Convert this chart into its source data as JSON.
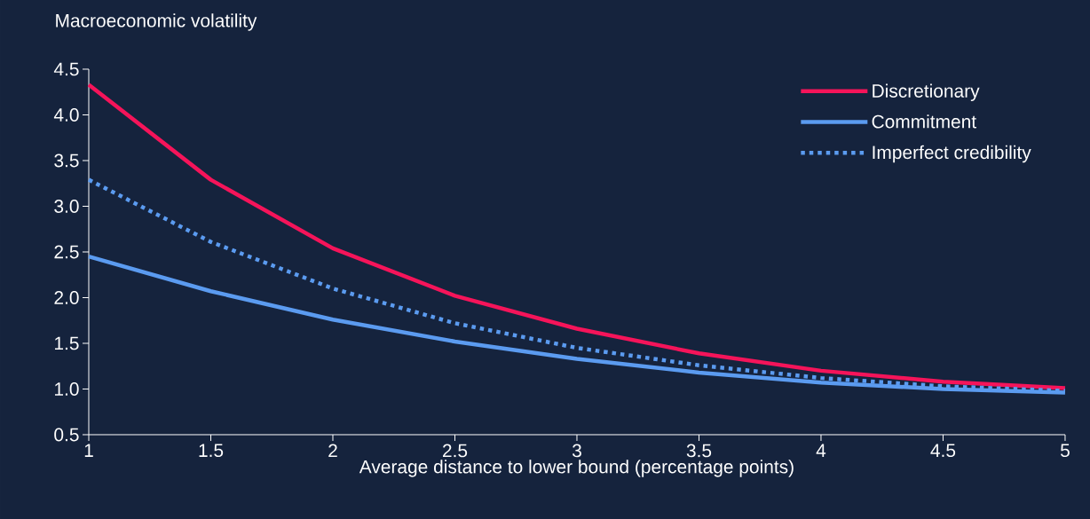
{
  "chart_data": {
    "type": "line",
    "ylabel": "Macroeconomic volatility",
    "xlabel": "Average distance to lower bound (percentage points)",
    "x": [
      1,
      1.5,
      2,
      2.5,
      3,
      3.5,
      4,
      4.5,
      5
    ],
    "series": [
      {
        "name": "Discretionary",
        "color": "#f5145a",
        "line_style": "solid",
        "values": [
          4.33,
          3.29,
          2.54,
          2.02,
          1.66,
          1.39,
          1.2,
          1.08,
          1.01
        ]
      },
      {
        "name": "Commitment",
        "color": "#5b9bf0",
        "line_style": "solid",
        "values": [
          2.45,
          2.07,
          1.76,
          1.52,
          1.33,
          1.18,
          1.07,
          1.0,
          0.96
        ]
      },
      {
        "name": "Imperfect credibility",
        "color": "#5b9bf0",
        "line_style": "dotted",
        "values": [
          3.29,
          2.61,
          2.1,
          1.72,
          1.45,
          1.26,
          1.12,
          1.03,
          0.98
        ]
      }
    ],
    "xlim": [
      1,
      5
    ],
    "xticks": [
      1,
      1.5,
      2,
      2.5,
      3,
      3.5,
      4,
      4.5,
      5
    ],
    "ylim": [
      0.5,
      4.5
    ],
    "yticks": [
      {
        "value": 0.5,
        "label": "0.5"
      },
      {
        "value": 1,
        "label": "1.0"
      },
      {
        "value": 1.5,
        "label": "1.5"
      },
      {
        "value": 2,
        "label": "2.0"
      },
      {
        "value": 2.5,
        "label": "2.5"
      },
      {
        "value": 3,
        "label": "3.0"
      },
      {
        "value": 3.5,
        "label": "3.5"
      },
      {
        "value": 4,
        "label": "4.0"
      },
      {
        "value": 4.5,
        "label": "4.5"
      }
    ],
    "grid": false,
    "legend": "top right",
    "marker": "none"
  }
}
